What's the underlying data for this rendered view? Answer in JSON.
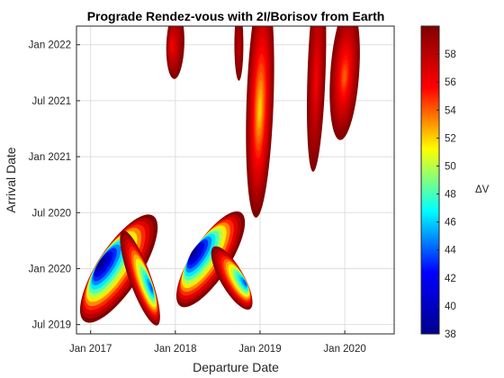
{
  "chart_data": {
    "type": "heatmap",
    "title": "Prograde Rendez-vous with 2I/Borisov from Earth",
    "xlabel": "Departure Date",
    "ylabel": "Arrival Date",
    "x_ticks": [
      "Jan 2017",
      "Jan 2018",
      "Jan 2019",
      "Jan 2020"
    ],
    "y_ticks": [
      "Jul 2019",
      "Jan 2020",
      "Jul 2020",
      "Jan 2021",
      "Jul 2021",
      "Jan 2022"
    ],
    "xlim": [
      "2016-11",
      "2020-08"
    ],
    "ylim": [
      "2019-06",
      "2022-03"
    ],
    "grid": true,
    "colorbar": {
      "label": "ΔV",
      "range": [
        38,
        60
      ],
      "ticks": [
        38,
        40,
        42,
        44,
        46,
        48,
        50,
        52,
        54,
        56,
        58
      ],
      "colormap": [
        "#00008f",
        "#0000ff",
        "#00ffff",
        "#ffff00",
        "#ff0000",
        "#800000"
      ]
    },
    "regions": [
      {
        "name": "low-dv-lobe-1",
        "center": [
          "2017-05",
          "2020-01"
        ],
        "min_dv": 38,
        "max_dv": 60
      },
      {
        "name": "low-dv-lobe-1b",
        "center": [
          "2017-08",
          "2019-12"
        ],
        "min_dv": 44,
        "max_dv": 60
      },
      {
        "name": "low-dv-lobe-2",
        "center": [
          "2018-06",
          "2020-02"
        ],
        "min_dv": 38,
        "max_dv": 60
      },
      {
        "name": "low-dv-lobe-2b",
        "center": [
          "2018-09",
          "2019-12"
        ],
        "min_dv": 44,
        "max_dv": 60
      },
      {
        "name": "spike-1",
        "center": [
          "2018-01",
          "2022-01"
        ],
        "min_dv": 56,
        "max_dv": 60
      },
      {
        "name": "spike-2",
        "center": [
          "2018-10",
          "2022-01"
        ],
        "min_dv": 58,
        "max_dv": 60
      },
      {
        "name": "spike-3",
        "center": [
          "2019-01",
          "2021-07"
        ],
        "min_dv": 52,
        "max_dv": 60
      },
      {
        "name": "spike-4",
        "center": [
          "2019-09",
          "2021-10"
        ],
        "min_dv": 56,
        "max_dv": 60
      },
      {
        "name": "spike-5",
        "center": [
          "2020-01",
          "2021-10"
        ],
        "min_dv": 54,
        "max_dv": 60
      }
    ]
  }
}
